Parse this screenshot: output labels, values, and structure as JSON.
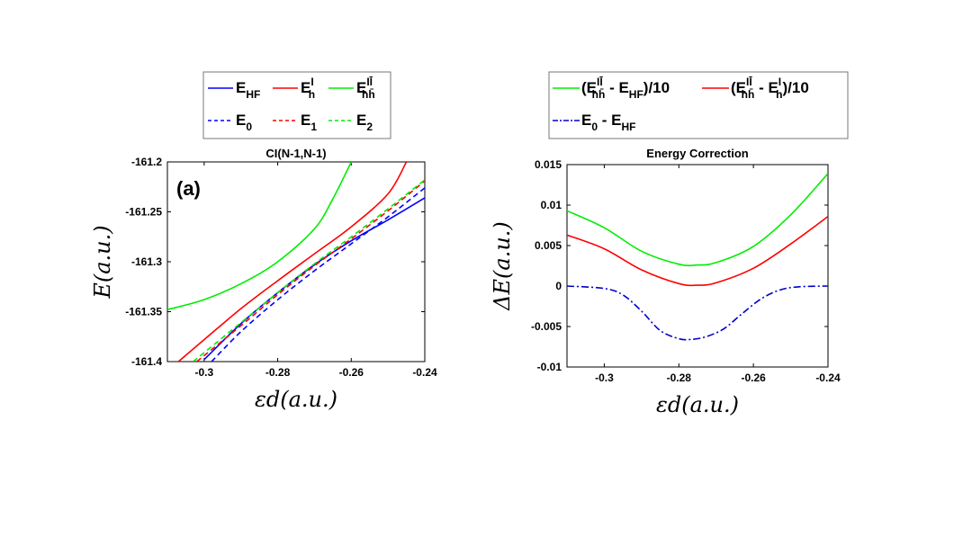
{
  "chart_data": [
    {
      "type": "line",
      "title": "CI(N-1,N-1)",
      "panel_label": "(a)",
      "xlabel": "εd(a.u.)",
      "ylabel": "E(a.u.)",
      "xlim": [
        -0.31,
        -0.24
      ],
      "ylim": [
        -161.4,
        -161.2
      ],
      "xticks": [
        -0.3,
        -0.28,
        -0.26,
        -0.24
      ],
      "xtick_labels": [
        "-0.3",
        "-0.28",
        "-0.26",
        "-0.24"
      ],
      "yticks": [
        -161.2,
        -161.25,
        -161.3,
        -161.35,
        -161.4
      ],
      "ytick_labels": [
        "-161.2",
        "-161.25",
        "-161.3",
        "-161.35",
        "-161.4"
      ],
      "legend_position": "above",
      "series": [
        {
          "name": "E_HF",
          "label": "E",
          "sub": "HF",
          "sup": "",
          "color": "#0000ff",
          "dash": "solid",
          "x": [
            -0.3,
            -0.29,
            -0.28,
            -0.27,
            -0.26,
            -0.25,
            -0.24
          ],
          "y": [
            -161.398,
            -161.362,
            -161.331,
            -161.303,
            -161.279,
            -161.258,
            -161.236
          ]
        },
        {
          "name": "E_h^I",
          "label": "E",
          "sub": "h",
          "sup": "I",
          "color": "#ff0000",
          "dash": "solid",
          "x": [
            -0.307,
            -0.3,
            -0.29,
            -0.28,
            -0.27,
            -0.26,
            -0.25,
            -0.245
          ],
          "y": [
            -161.4,
            -161.378,
            -161.347,
            -161.319,
            -161.292,
            -161.265,
            -161.232,
            -161.2
          ]
        },
        {
          "name": "E_hh̄^IĪ",
          "label": "E",
          "sub": "hh̄",
          "sup": "IĪ",
          "color": "#00ee00",
          "dash": "solid",
          "x": [
            -0.31,
            -0.3,
            -0.29,
            -0.28,
            -0.27,
            -0.265,
            -0.26
          ],
          "y": [
            -161.348,
            -161.338,
            -161.322,
            -161.3,
            -161.267,
            -161.237,
            -161.2
          ]
        },
        {
          "name": "E_0",
          "label": "E",
          "sub": "0",
          "sup": "",
          "color": "#0000ff",
          "dash": "dash",
          "x": [
            -0.298,
            -0.29,
            -0.28,
            -0.27,
            -0.26,
            -0.25,
            -0.24
          ],
          "y": [
            -161.4,
            -161.37,
            -161.338,
            -161.309,
            -161.282,
            -161.255,
            -161.226
          ]
        },
        {
          "name": "E_1",
          "label": "E",
          "sub": "1",
          "sup": "",
          "color": "#ff0000",
          "dash": "dash",
          "x": [
            -0.302,
            -0.29,
            -0.28,
            -0.27,
            -0.26,
            -0.25,
            -0.24
          ],
          "y": [
            -161.4,
            -161.364,
            -161.333,
            -161.304,
            -161.277,
            -161.249,
            -161.219
          ]
        },
        {
          "name": "E_2",
          "label": "E",
          "sub": "2",
          "sup": "",
          "color": "#00ee00",
          "dash": "dash",
          "x": [
            -0.303,
            -0.29,
            -0.28,
            -0.27,
            -0.26,
            -0.25,
            -0.24
          ],
          "y": [
            -161.4,
            -161.361,
            -161.331,
            -161.302,
            -161.275,
            -161.247,
            -161.218
          ]
        }
      ]
    },
    {
      "type": "line",
      "title": "Energy Correction",
      "xlabel": "εd(a.u.)",
      "ylabel": "ΔE(a.u.)",
      "xlim": [
        -0.31,
        -0.24
      ],
      "ylim": [
        -0.01,
        0.015
      ],
      "xticks": [
        -0.3,
        -0.28,
        -0.26,
        -0.24
      ],
      "xtick_labels": [
        "-0.3",
        "-0.28",
        "-0.26",
        "-0.24"
      ],
      "yticks": [
        0.015,
        0.01,
        0.005,
        0,
        -0.005,
        -0.01
      ],
      "ytick_labels": [
        "0.015",
        "0.01",
        "0.005",
        "0",
        "-0.005",
        "-0.01"
      ],
      "legend_position": "above",
      "series": [
        {
          "name": "(E_hh̄^IĪ - E_HF)/10",
          "prefix": "(E",
          "sub": "hh̄",
          "sup": "IĪ",
          "mid": " - E",
          "sub2": "HF",
          "sup2": "",
          "suffix": ")/10",
          "color": "#00ee00",
          "dash": "solid",
          "x": [
            -0.31,
            -0.3,
            -0.29,
            -0.28,
            -0.275,
            -0.27,
            -0.26,
            -0.25,
            -0.24
          ],
          "y": [
            0.0093,
            0.0072,
            0.0043,
            0.0027,
            0.0026,
            0.0029,
            0.0049,
            0.0088,
            0.0139
          ]
        },
        {
          "name": "(E_hh̄^IĪ - E_h^I)/10",
          "prefix": "(E",
          "sub": "hh̄",
          "sup": "IĪ",
          "mid": " - E",
          "sub2": "h",
          "sup2": "I",
          "suffix": ")/10",
          "color": "#ff0000",
          "dash": "solid",
          "x": [
            -0.31,
            -0.3,
            -0.29,
            -0.28,
            -0.275,
            -0.27,
            -0.26,
            -0.25,
            -0.24
          ],
          "y": [
            0.0063,
            0.0046,
            0.002,
            0.0003,
            0.0001,
            0.0004,
            0.0022,
            0.0052,
            0.0086
          ]
        },
        {
          "name": "E_0 - E_HF",
          "prefix": "E",
          "sub": "0",
          "sup": "",
          "mid": " - E",
          "sub2": "HF",
          "sup2": "",
          "suffix": "",
          "color": "#0000cc",
          "dash": "dashdot",
          "x": [
            -0.31,
            -0.3,
            -0.295,
            -0.29,
            -0.285,
            -0.28,
            -0.277,
            -0.273,
            -0.268,
            -0.263,
            -0.258,
            -0.253,
            -0.248,
            -0.24
          ],
          "y": [
            0.0,
            -0.0003,
            -0.0011,
            -0.0031,
            -0.0055,
            -0.0065,
            -0.0066,
            -0.0063,
            -0.0053,
            -0.0034,
            -0.0016,
            -0.0005,
            -0.0001,
            0.0
          ]
        }
      ]
    }
  ]
}
